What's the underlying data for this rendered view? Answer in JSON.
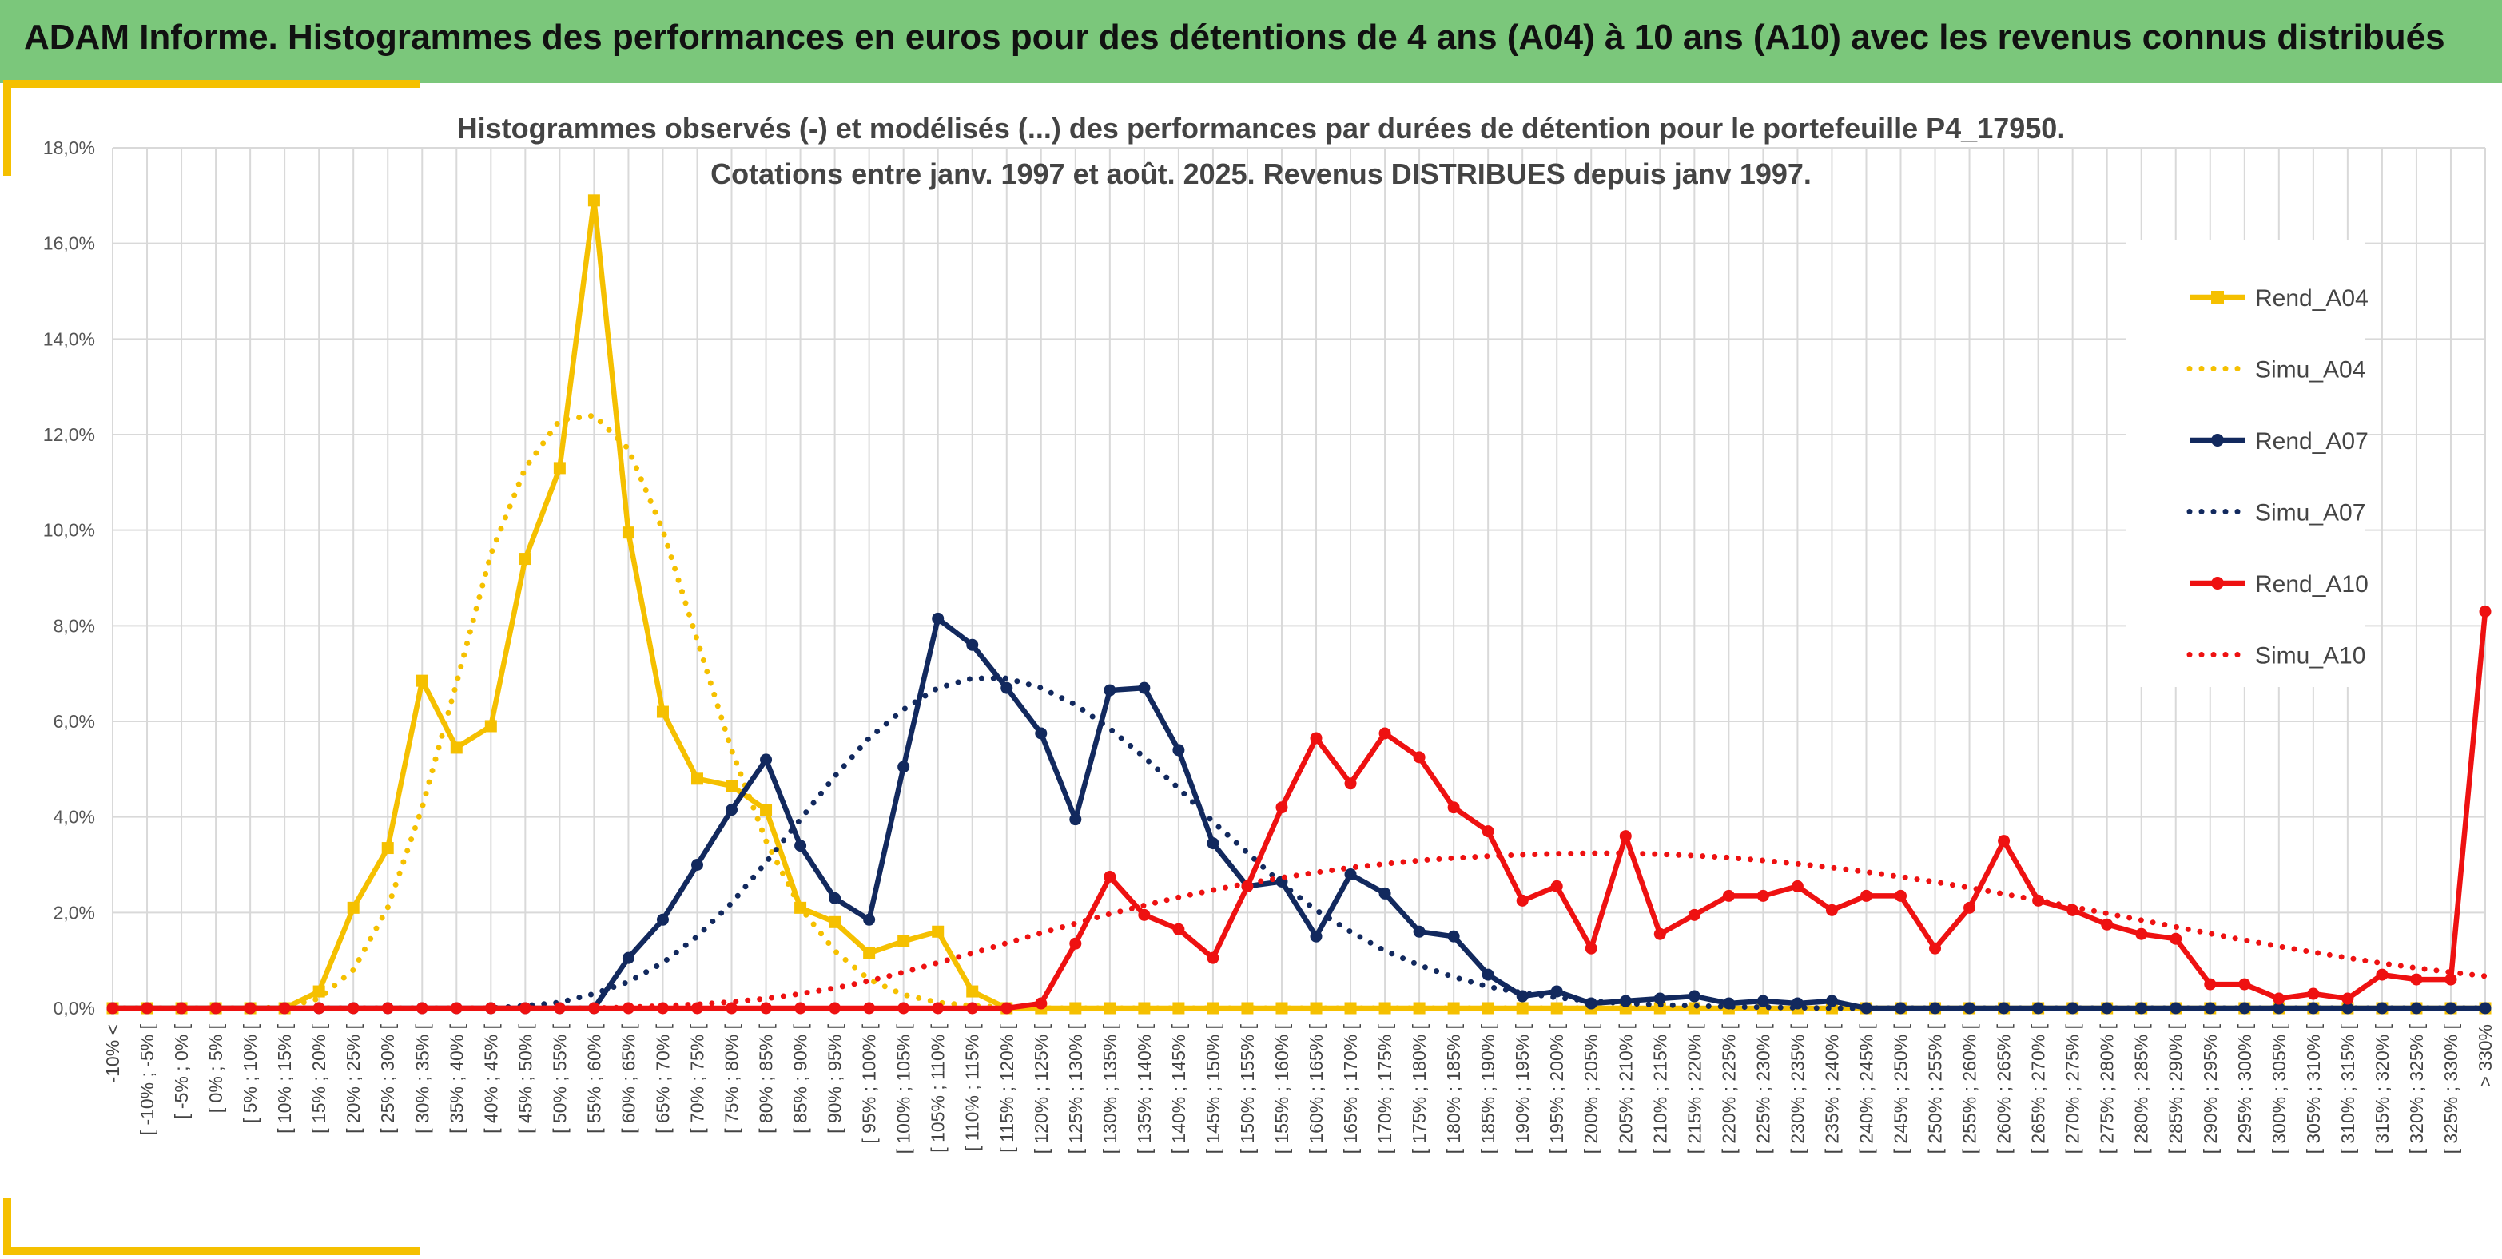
{
  "header": {
    "title": "ADAM Informe. Histogrammes des performances en euros pour des détentions de 4 ans (A04) à 10 ans (A10) avec les revenus connus distribués"
  },
  "colors": {
    "banner": "#7bc77b",
    "accent": "#f5c000",
    "A04": "#f5c000",
    "A07": "#12295e",
    "A10": "#ee1111"
  },
  "chart_data": {
    "type": "line",
    "title_line1": "Histogrammes observés (-) et modélisés (...) des performances par durées de détention pour le portefeuille P4_17950.",
    "title_line2": "Cotations entre janv. 1997 et août. 2025. Revenus DISTRIBUES depuis janv 1997.",
    "ylim": [
      0,
      18
    ],
    "yticks": [
      "0,0%",
      "2,0%",
      "4,0%",
      "6,0%",
      "8,0%",
      "10,0%",
      "12,0%",
      "14,0%",
      "16,0%",
      "18,0%"
    ],
    "grid": true,
    "legend_position": "right",
    "categories": [
      "-10% <",
      "[ -10% ; -5% [",
      "[ -5% ; 0% [",
      "[ 0% ; 5% [",
      "[ 5% ; 10% [",
      "[ 10% ; 15% [",
      "[ 15% ; 20% [",
      "[ 20% ; 25% [",
      "[ 25% ; 30% [",
      "[ 30% ; 35% [",
      "[ 35% ; 40% [",
      "[ 40% ; 45% [",
      "[ 45% ; 50% [",
      "[ 50% ; 55% [",
      "[ 55% ; 60% [",
      "[ 60% ; 65% [",
      "[ 65% ; 70% [",
      "[ 70% ; 75% [",
      "[ 75% ; 80% [",
      "[ 80% ; 85% [",
      "[ 85% ; 90% [",
      "[ 90% ; 95% [",
      "[ 95% ; 100% [",
      "[ 100% ; 105% [",
      "[ 105% ; 110% [",
      "[ 110% ; 115% [",
      "[ 115% ; 120% [",
      "[ 120% ; 125% [",
      "[ 125% ; 130% [",
      "[ 130% ; 135% [",
      "[ 135% ; 140% [",
      "[ 140% ; 145% [",
      "[ 145% ; 150% [",
      "[ 150% ; 155% [",
      "[ 155% ; 160% [",
      "[ 160% ; 165% [",
      "[ 165% ; 170% [",
      "[ 170% ; 175% [",
      "[ 175% ; 180% [",
      "[ 180% ; 185% [",
      "[ 185% ; 190% [",
      "[ 190% ; 195% [",
      "[ 195% ; 200% [",
      "[ 200% ; 205% [",
      "[ 205% ; 210% [",
      "[ 210% ; 215% [",
      "[ 215% ; 220% [",
      "[ 220% ; 225% [",
      "[ 225% ; 230% [",
      "[ 230% ; 235% [",
      "[ 235% ; 240% [",
      "[ 240% ; 245% [",
      "[ 245% ; 250% [",
      "[ 250% ; 255% [",
      "[ 255% ; 260% [",
      "[ 260% ; 265% [",
      "[ 265% ; 270% [",
      "[ 270% ; 275% [",
      "[ 275% ; 280% [",
      "[ 280% ; 285% [",
      "[ 285% ; 290% [",
      "[ 290% ; 295% [",
      "[ 295% ; 300% [",
      "[ 300% ; 305% [",
      "[ 305% ; 310% [",
      "[ 310% ; 315% [",
      "[ 315% ; 320% [",
      "[ 320% ; 325% [",
      "[ 325% ; 330% [",
      "> 330%"
    ],
    "series": [
      {
        "name": "Rend_A04",
        "style": "solid",
        "marker": "square",
        "color": "#f5c000",
        "values": [
          0,
          0,
          0,
          0,
          0,
          0,
          0.35,
          2.1,
          3.35,
          6.85,
          5.45,
          5.9,
          9.4,
          11.3,
          16.9,
          9.95,
          6.2,
          4.8,
          4.65,
          4.15,
          2.1,
          1.8,
          1.15,
          1.4,
          1.6,
          0.35,
          0,
          0,
          0,
          0,
          0,
          0,
          0,
          0,
          0,
          0,
          0,
          0,
          0,
          0,
          0,
          0,
          0,
          0,
          0,
          0,
          0,
          0,
          0,
          0,
          0,
          0,
          0,
          0,
          0,
          0,
          0,
          0,
          0,
          0,
          0,
          0,
          0,
          0,
          0,
          0,
          0,
          0,
          0,
          0
        ]
      },
      {
        "name": "Simu_A04",
        "style": "dotted",
        "marker": "none",
        "color": "#f5c000",
        "values": [
          0,
          0,
          0,
          0,
          0,
          0.02,
          0.2,
          0.8,
          2.1,
          4.2,
          6.8,
          9.5,
          11.3,
          12.3,
          12.4,
          11.7,
          10.0,
          7.7,
          5.4,
          3.5,
          2.1,
          1.2,
          0.6,
          0.28,
          0.12,
          0.05,
          0.02,
          0,
          0,
          0,
          0,
          0,
          0,
          0,
          0,
          0,
          0,
          0,
          0,
          0,
          0,
          0,
          0,
          0,
          0,
          0,
          0,
          0,
          0,
          0,
          0,
          0,
          0,
          0,
          0,
          0,
          0,
          0,
          0,
          0,
          0,
          0,
          0,
          0,
          0,
          0,
          0,
          0,
          0,
          0
        ]
      },
      {
        "name": "Rend_A07",
        "style": "solid",
        "marker": "circle",
        "color": "#12295e",
        "values": [
          0,
          0,
          0,
          0,
          0,
          0,
          0,
          0,
          0,
          0,
          0,
          0,
          0,
          0,
          0,
          1.05,
          1.85,
          3.0,
          4.15,
          5.2,
          3.4,
          2.3,
          1.85,
          5.05,
          8.15,
          7.6,
          6.7,
          5.75,
          3.95,
          6.65,
          6.7,
          5.4,
          3.45,
          2.55,
          2.65,
          1.5,
          2.8,
          2.4,
          1.6,
          1.5,
          0.7,
          0.25,
          0.35,
          0.1,
          0.15,
          0.2,
          0.25,
          0.1,
          0.15,
          0.1,
          0.15,
          0,
          0,
          0,
          0,
          0,
          0,
          0,
          0,
          0,
          0,
          0,
          0,
          0,
          0,
          0,
          0,
          0,
          0,
          0
        ]
      },
      {
        "name": "Simu_A07",
        "style": "dotted",
        "marker": "none",
        "color": "#12295e",
        "values": [
          0,
          0,
          0,
          0,
          0,
          0,
          0,
          0,
          0,
          0,
          0,
          0,
          0.05,
          0.12,
          0.3,
          0.55,
          0.95,
          1.5,
          2.2,
          3.05,
          3.95,
          4.85,
          5.65,
          6.25,
          6.7,
          6.9,
          6.9,
          6.7,
          6.35,
          5.85,
          5.25,
          4.6,
          3.9,
          3.25,
          2.6,
          2.05,
          1.6,
          1.2,
          0.9,
          0.65,
          0.45,
          0.32,
          0.22,
          0.15,
          0.1,
          0.07,
          0.05,
          0.03,
          0.02,
          0.01,
          0,
          0,
          0,
          0,
          0,
          0,
          0,
          0,
          0,
          0,
          0,
          0,
          0,
          0,
          0,
          0,
          0,
          0,
          0,
          0
        ]
      },
      {
        "name": "Rend_A10",
        "style": "solid",
        "marker": "circle",
        "color": "#ee1111",
        "values": [
          0,
          0,
          0,
          0,
          0,
          0,
          0,
          0,
          0,
          0,
          0,
          0,
          0,
          0,
          0,
          0,
          0,
          0,
          0,
          0,
          0,
          0,
          0,
          0,
          0,
          0,
          0,
          0.1,
          1.35,
          2.75,
          1.95,
          1.65,
          1.05,
          2.55,
          4.2,
          5.65,
          4.7,
          5.75,
          5.25,
          4.2,
          3.7,
          2.25,
          2.55,
          1.25,
          3.6,
          1.55,
          1.95,
          2.35,
          2.35,
          2.55,
          2.05,
          2.35,
          2.35,
          1.25,
          2.1,
          3.5,
          2.25,
          2.05,
          1.75,
          1.55,
          1.45,
          0.5,
          0.5,
          0.2,
          0.3,
          0.2,
          0.7,
          0.6,
          0.6,
          8.3
        ]
      },
      {
        "name": "Simu_A10",
        "style": "dotted",
        "marker": "none",
        "color": "#ee1111",
        "values": [
          0,
          0,
          0,
          0,
          0,
          0,
          0,
          0,
          0,
          0,
          0,
          0,
          0,
          0,
          0,
          0.02,
          0.05,
          0.08,
          0.13,
          0.2,
          0.3,
          0.42,
          0.57,
          0.75,
          0.95,
          1.15,
          1.36,
          1.57,
          1.77,
          1.97,
          2.15,
          2.32,
          2.47,
          2.61,
          2.73,
          2.84,
          2.94,
          3.02,
          3.09,
          3.14,
          3.18,
          3.21,
          3.23,
          3.24,
          3.24,
          3.22,
          3.19,
          3.15,
          3.09,
          3.02,
          2.94,
          2.85,
          2.75,
          2.64,
          2.52,
          2.39,
          2.26,
          2.12,
          1.98,
          1.84,
          1.7,
          1.56,
          1.42,
          1.29,
          1.17,
          1.05,
          0.94,
          0.84,
          0.75,
          0.67
        ]
      }
    ]
  }
}
